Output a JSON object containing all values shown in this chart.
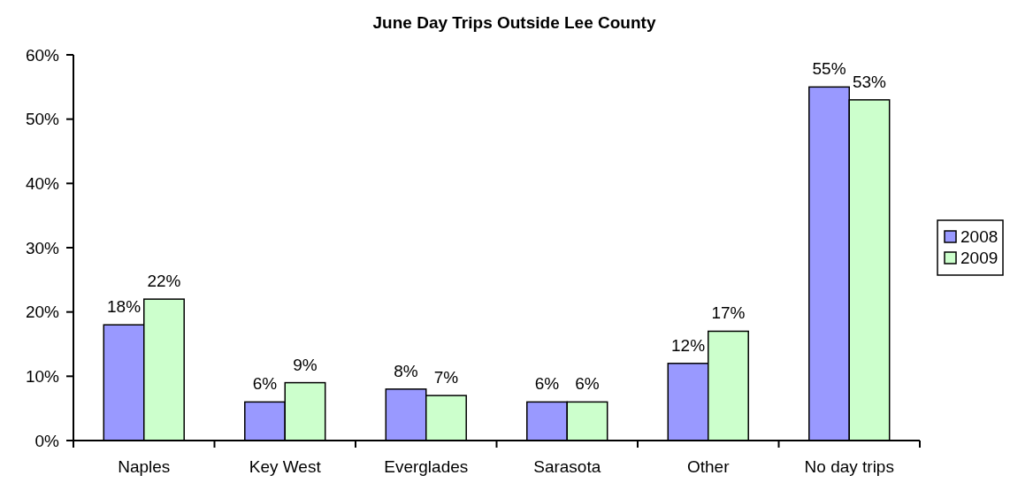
{
  "chart_data": {
    "type": "bar",
    "title": "June Day Trips Outside Lee County",
    "categories": [
      "Naples",
      "Key West",
      "Everglades",
      "Sarasota",
      "Other",
      "No day trips"
    ],
    "series": [
      {
        "name": "2008",
        "color": "#9999ff",
        "values": [
          18,
          6,
          8,
          6,
          12,
          55
        ],
        "value_labels": [
          "18%",
          "6%",
          "8%",
          "6%",
          "12%",
          "55%"
        ]
      },
      {
        "name": "2009",
        "color": "#ccffcc",
        "values": [
          22,
          9,
          7,
          6,
          17,
          53
        ],
        "value_labels": [
          "22%",
          "9%",
          "7%",
          "6%",
          "17%",
          "53%"
        ]
      }
    ],
    "ylim": [
      0,
      60
    ],
    "yticks": [
      {
        "value": 0,
        "label": "0%"
      },
      {
        "value": 10,
        "label": "10%"
      },
      {
        "value": 20,
        "label": "20%"
      },
      {
        "value": 30,
        "label": "30%"
      },
      {
        "value": 40,
        "label": "40%"
      },
      {
        "value": 50,
        "label": "50%"
      },
      {
        "value": 60,
        "label": "60%"
      }
    ],
    "grid": false,
    "legend": "right"
  }
}
